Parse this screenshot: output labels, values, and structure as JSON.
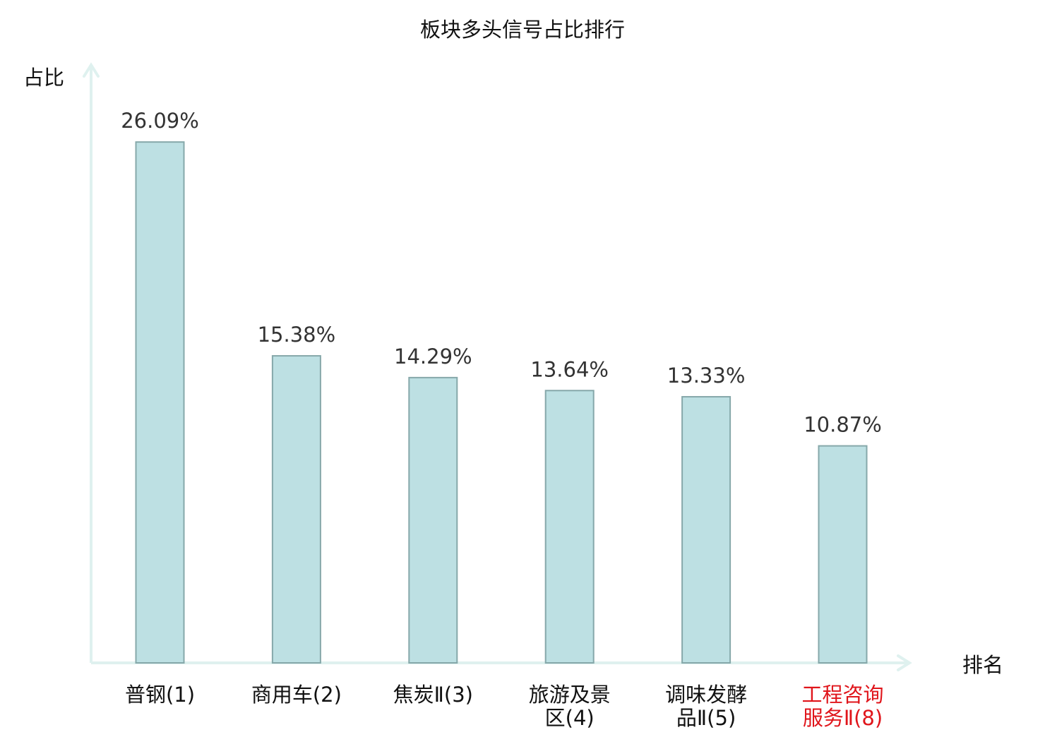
{
  "chart_data": {
    "type": "bar",
    "title": "板块多头信号占比排行",
    "ylabel": "占比",
    "xlabel": "排名",
    "categories": [
      [
        "普钢(1)"
      ],
      [
        "商用车(2)"
      ],
      [
        "焦炭Ⅱ(3)"
      ],
      [
        "旅游及景",
        "区(4)"
      ],
      [
        "调味发酵",
        "品Ⅱ(5)"
      ],
      [
        "工程咨询",
        "服务Ⅱ(8)"
      ]
    ],
    "values": [
      26.09,
      15.38,
      14.29,
      13.64,
      13.33,
      10.87
    ],
    "value_labels": [
      "26.09%",
      "15.38%",
      "14.29%",
      "13.64%",
      "13.33%",
      "10.87%"
    ],
    "highlight_index": 5,
    "ylim": [
      0,
      28
    ],
    "grid": false,
    "legend": "none",
    "colors": {
      "bar_fill": "#bde0e3",
      "bar_stroke": "#86a8aa",
      "axis": "#dff1ef",
      "text": "#111111",
      "value_text": "#333333",
      "highlight": "#e0151b"
    }
  }
}
